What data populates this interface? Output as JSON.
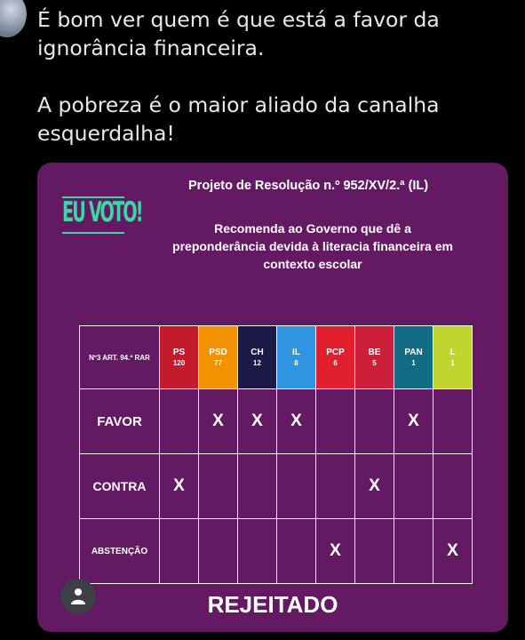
{
  "tweet": {
    "text": "É bom ver quem é que está a favor da\nignorância financeira.\n\nA pobreza é o maior aliado da canalha\nesquerdalha!"
  },
  "card": {
    "logo_text": "EU VOTO!",
    "title": "Projeto de Resolução n.º 952/XV/2.ª (IL)",
    "description": "Recomenda ao Governo que dê a\npreponderância devida à literacia financeira em\ncontexto escolar",
    "table_header_label": "Nº3 ART. 94.º RAR",
    "parties": [
      {
        "abbr": "PS",
        "seats": "120",
        "color": "#c41b2c"
      },
      {
        "abbr": "PSD",
        "seats": "77",
        "color": "#f29200"
      },
      {
        "abbr": "CH",
        "seats": "12",
        "color": "#1b1a47"
      },
      {
        "abbr": "IL",
        "seats": "8",
        "color": "#2f95e0"
      },
      {
        "abbr": "PCP",
        "seats": "6",
        "color": "#e21f2e"
      },
      {
        "abbr": "BE",
        "seats": "5",
        "color": "#cc1f3a"
      },
      {
        "abbr": "PAN",
        "seats": "1",
        "color": "#116c86"
      },
      {
        "abbr": "L",
        "seats": "1",
        "color": "#c0d52e"
      }
    ],
    "rows": [
      {
        "label": "FAVOR",
        "marks": [
          "",
          "X",
          "X",
          "X",
          "",
          "",
          "X",
          ""
        ]
      },
      {
        "label": "CONTRA",
        "marks": [
          "X",
          "",
          "",
          "",
          "",
          "X",
          "",
          ""
        ]
      },
      {
        "label": "ABSTENÇÃO",
        "marks": [
          "",
          "",
          "",
          "",
          "X",
          "",
          "",
          "X"
        ]
      }
    ],
    "result": "REJEITADO"
  },
  "icons": {
    "avatar": "user-avatar-icon",
    "fab": "person-icon"
  }
}
